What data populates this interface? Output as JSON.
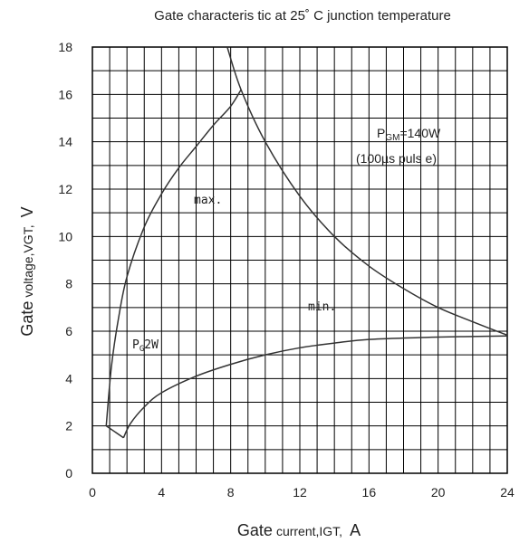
{
  "chart_data": {
    "type": "line",
    "title": "Gate characteris tic at 25˚ C junction temperature",
    "xlabel": {
      "main": "Gate",
      "small": "current,IGT,",
      "unit": "A"
    },
    "ylabel": {
      "main": "Gate",
      "small": "voltage,VGT,",
      "unit": "V"
    },
    "xlim": [
      0,
      24
    ],
    "ylim": [
      0,
      18
    ],
    "xticks": [
      0,
      4,
      8,
      12,
      16,
      20,
      24
    ],
    "yticks": [
      0,
      2,
      4,
      6,
      8,
      10,
      12,
      14,
      16,
      18
    ],
    "grid": true,
    "series": [
      {
        "name": "max.",
        "points": [
          [
            0.8,
            2.0
          ],
          [
            1.1,
            4.5
          ],
          [
            1.5,
            6.5
          ],
          [
            2.0,
            8.3
          ],
          [
            3.0,
            10.4
          ],
          [
            4.0,
            11.8
          ],
          [
            5.0,
            12.9
          ],
          [
            6.0,
            13.8
          ],
          [
            7.0,
            14.7
          ],
          [
            8.0,
            15.5
          ],
          [
            8.6,
            16.2
          ]
        ]
      },
      {
        "name": "min.",
        "points": [
          [
            1.8,
            1.5
          ],
          [
            2.2,
            2.1
          ],
          [
            3.0,
            2.8
          ],
          [
            4.0,
            3.4
          ],
          [
            6.0,
            4.1
          ],
          [
            8.0,
            4.6
          ],
          [
            10.0,
            5.0
          ],
          [
            12.0,
            5.3
          ],
          [
            14.0,
            5.5
          ],
          [
            16.0,
            5.65
          ],
          [
            20.0,
            5.75
          ],
          [
            24.0,
            5.8
          ]
        ]
      },
      {
        "name": "PGM=140W",
        "points": [
          [
            7.8,
            18.0
          ],
          [
            8.6,
            16.2
          ],
          [
            10.0,
            14.0
          ],
          [
            12.0,
            11.7
          ],
          [
            14.0,
            10.0
          ],
          [
            16.0,
            8.75
          ],
          [
            18.0,
            7.8
          ],
          [
            20.0,
            7.0
          ],
          [
            22.0,
            6.4
          ],
          [
            24.0,
            5.83
          ]
        ]
      },
      {
        "name": "PG2W",
        "points": [
          [
            0.8,
            2.0
          ],
          [
            1.8,
            1.5
          ]
        ]
      }
    ],
    "annotations": {
      "max_label": "max.",
      "min_label": "min.",
      "pgm_label_main": "P",
      "pgm_label_sub": "GM",
      "pgm_label_rest": "=140W",
      "pgm_label_line2": "(100µs  puls e)",
      "pg_label_main": "P",
      "pg_label_sub": "G",
      "pg_label_rest": "2W"
    }
  }
}
